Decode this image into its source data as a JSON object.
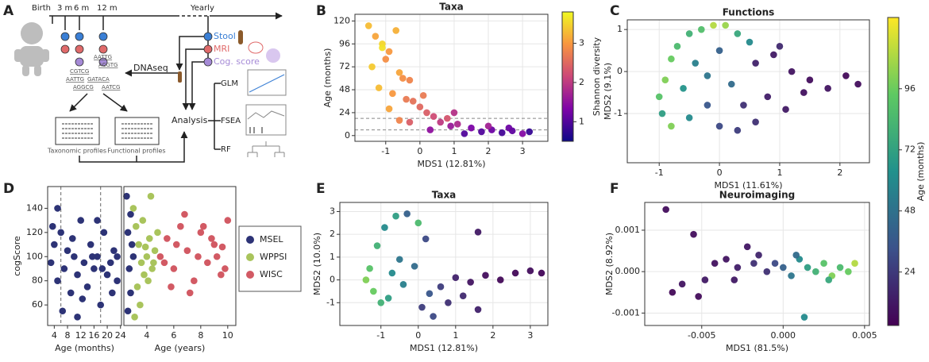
{
  "diagram": {
    "label": "A",
    "timeline": [
      "Birth",
      "3 m",
      "6 m",
      "12 m",
      "Yearly"
    ],
    "samples": [
      "Stool",
      "MRI",
      "Cog. score"
    ],
    "dnaseq": "DNAseq",
    "sequences": [
      "AATTG",
      "ACGTG",
      "CGTCG",
      "AATTG",
      "GATACA",
      "AGGCG",
      "AATCG"
    ],
    "analysis": "Analysis",
    "methods": [
      "GLM",
      "FSEA",
      "RF"
    ],
    "profiles": [
      "Taxonomic profiles",
      "Functional profiles"
    ]
  },
  "chart_data": [
    {
      "type": "scatter",
      "label": "B",
      "title": "Taxa",
      "xlabel": "MDS1 (12.81%)",
      "ylabel": "Age (months)",
      "grid": true,
      "xlim": [
        -1.9,
        3.74
      ],
      "ylim": [
        -6,
        127
      ],
      "xticks": [
        -1,
        0,
        1,
        2,
        3
      ],
      "yticks": [
        0,
        24,
        48,
        72,
        96,
        120
      ],
      "hlines": [
        6,
        18
      ],
      "colormap": "plasma",
      "clim": [
        0.5,
        3.8
      ],
      "colorbar": {
        "label": "Shannon diversity",
        "ticks": [
          1,
          2,
          3
        ]
      },
      "x": [
        -1.5,
        -1.3,
        -1.1,
        -0.9,
        -0.7,
        -1.4,
        -1.0,
        -0.6,
        -0.3,
        -1.2,
        -0.8,
        -0.4,
        0.0,
        -1.1,
        -0.5,
        0.2,
        -0.9,
        -0.2,
        0.4,
        -0.6,
        0.6,
        0.9,
        1.1,
        0.3,
        1.5,
        1.8,
        2.1,
        2.4,
        2.7,
        3.0,
        3.2,
        0.8,
        1.3,
        2.0,
        2.6,
        0.1,
        -0.3,
        1.0
      ],
      "y": [
        115,
        104,
        96,
        88,
        110,
        72,
        80,
        66,
        58,
        50,
        44,
        38,
        30,
        92,
        60,
        24,
        28,
        36,
        20,
        16,
        14,
        10,
        12,
        6,
        8,
        4,
        6,
        3,
        5,
        2,
        4,
        18,
        2,
        10,
        8,
        42,
        14,
        24
      ],
      "c": [
        3.3,
        3.1,
        3.5,
        3.0,
        3.2,
        3.4,
        2.9,
        3.1,
        2.8,
        3.3,
        3.0,
        2.7,
        2.5,
        3.6,
        2.9,
        2.4,
        3.1,
        2.6,
        2.2,
        2.8,
        2.0,
        1.6,
        1.8,
        1.5,
        1.3,
        1.0,
        1.2,
        0.9,
        1.1,
        1.4,
        0.8,
        2.3,
        1.0,
        1.7,
        1.2,
        2.7,
        2.4,
        1.9
      ]
    },
    {
      "type": "scatter",
      "label": "C",
      "title": "Functions",
      "xlabel": "MDS1 (11.61%)",
      "ylabel": "MDS2 (9.1%)",
      "grid": true,
      "xlim": [
        -1.53,
        2.49
      ],
      "ylim": [
        -2.17,
        1.23
      ],
      "xticks": [
        -1,
        0,
        1,
        2
      ],
      "yticks": [
        -1,
        0,
        1
      ],
      "colormap": "viridis",
      "clim": [
        3,
        124
      ],
      "colorbar": {
        "label": "Age (months)",
        "ticks": [
          24,
          48,
          72,
          96
        ]
      },
      "x": [
        -1.0,
        -0.9,
        -0.8,
        -0.7,
        -0.5,
        -0.3,
        -0.1,
        0.1,
        0.3,
        0.5,
        -0.95,
        -0.6,
        -0.4,
        -0.2,
        0.0,
        0.2,
        -0.8,
        -0.5,
        0.0,
        0.4,
        0.6,
        0.9,
        1.2,
        1.5,
        1.8,
        2.1,
        2.3,
        0.8,
        1.1,
        1.4,
        1.0,
        0.3,
        -0.2,
        0.6
      ],
      "y": [
        -0.6,
        -0.2,
        0.3,
        0.6,
        0.9,
        1.0,
        1.1,
        1.1,
        0.9,
        0.7,
        -1.0,
        -0.4,
        0.2,
        -0.1,
        0.5,
        -0.3,
        -1.3,
        -1.1,
        -1.3,
        -0.8,
        0.2,
        0.4,
        0.0,
        -0.2,
        -0.4,
        -0.1,
        -0.3,
        -0.6,
        -0.9,
        -0.5,
        0.6,
        -1.4,
        -0.8,
        -1.2
      ],
      "c": [
        90,
        100,
        95,
        85,
        80,
        88,
        110,
        105,
        75,
        60,
        70,
        65,
        55,
        50,
        40,
        45,
        100,
        60,
        30,
        20,
        15,
        12,
        10,
        8,
        10,
        6,
        8,
        14,
        12,
        9,
        18,
        25,
        35,
        20
      ]
    },
    {
      "type": "scatter",
      "label": "D",
      "ylabel": "cogScore",
      "xlabel": "Age (months)",
      "x2label": "Age (years)",
      "xlim": [
        2,
        24.3
      ],
      "xticks": [
        4,
        8,
        12,
        16,
        20,
        24
      ],
      "x2lim": [
        2.3,
        10.6
      ],
      "x2ticks": [
        4,
        6,
        8,
        10
      ],
      "ylim": [
        43,
        158
      ],
      "yticks": [
        60,
        80,
        100,
        120,
        140
      ],
      "vlines": [
        6,
        18
      ],
      "legend": "right",
      "series": [
        {
          "name": "MSEL",
          "color": "#2d3376",
          "x": [
            3,
            4,
            5,
            6,
            7,
            8,
            9,
            10,
            11,
            12,
            13,
            14,
            15,
            16,
            17,
            18,
            19,
            20,
            21,
            22,
            23,
            3.5,
            6.5,
            9.5,
            12.5,
            15.5,
            18.5,
            21.5,
            5,
            11,
            17,
            23
          ],
          "y": [
            95,
            110,
            80,
            120,
            90,
            105,
            70,
            100,
            85,
            130,
            95,
            75,
            110,
            90,
            100,
            60,
            120,
            85,
            95,
            105,
            80,
            125,
            55,
            115,
            65,
            100,
            90,
            70,
            140,
            50,
            130,
            100
          ]
        },
        {
          "color": "#2d3376",
          "axis": "x2",
          "x": [
            2.5,
            2.6,
            2.7,
            2.8,
            2.9,
            3.0,
            2.6,
            2.8
          ],
          "y": [
            150,
            120,
            90,
            70,
            110,
            100,
            55,
            135
          ]
        },
        {
          "name": "WPPSI",
          "color": "#a9c45c",
          "axis": "x2",
          "x": [
            3.0,
            3.2,
            3.4,
            3.6,
            3.8,
            4.0,
            4.2,
            4.4,
            4.6,
            4.8,
            3.3,
            3.7,
            4.1,
            4.5,
            3.5,
            3.9,
            4.3,
            3.1
          ],
          "y": [
            140,
            125,
            110,
            95,
            85,
            100,
            115,
            90,
            105,
            120,
            75,
            130,
            80,
            95,
            60,
            108,
            150,
            50
          ]
        },
        {
          "name": "WISC",
          "color": "#d25a64",
          "axis": "x2",
          "x": [
            5.0,
            5.5,
            6.0,
            6.5,
            7.0,
            7.5,
            8.0,
            8.5,
            9.0,
            9.5,
            10.0,
            5.8,
            6.8,
            7.8,
            8.8,
            9.8,
            6.2,
            7.2,
            8.2,
            9.2,
            5.3,
            9.6
          ],
          "y": [
            100,
            115,
            90,
            125,
            105,
            80,
            120,
            95,
            110,
            85,
            130,
            75,
            135,
            100,
            115,
            90,
            110,
            70,
            125,
            100,
            95,
            108
          ]
        }
      ]
    },
    {
      "type": "scatter",
      "label": "E",
      "title": "Taxa",
      "xlabel": "MDS1 (12.81%)",
      "ylabel": "MDS2 (10.0%)",
      "grid": true,
      "xlim": [
        -2.1,
        3.47
      ],
      "ylim": [
        -2.0,
        3.4
      ],
      "xticks": [
        -1,
        0,
        1,
        2,
        3
      ],
      "yticks": [
        -1,
        0,
        1,
        2,
        3
      ],
      "colormap": "viridis",
      "clim": [
        3,
        124
      ],
      "x": [
        -1.3,
        -1.1,
        -0.9,
        -0.6,
        -0.3,
        0.0,
        0.2,
        -1.4,
        -1.2,
        -1.0,
        -0.7,
        -0.4,
        -0.1,
        0.3,
        0.6,
        1.0,
        1.4,
        1.8,
        2.2,
        2.6,
        3.0,
        3.3,
        0.8,
        1.2,
        1.6,
        0.4,
        -0.8,
        -0.5,
        0.1,
        1.6
      ],
      "y": [
        0.5,
        1.5,
        2.3,
        2.8,
        2.9,
        2.5,
        1.8,
        0.0,
        -0.5,
        -1.0,
        0.3,
        -0.2,
        0.6,
        -0.6,
        -0.3,
        0.1,
        -0.1,
        0.2,
        0.0,
        0.3,
        0.4,
        0.3,
        -1.0,
        -0.7,
        -1.3,
        -1.6,
        -0.8,
        0.9,
        -1.2,
        2.1
      ],
      "c": [
        90,
        80,
        60,
        70,
        40,
        85,
        30,
        100,
        95,
        80,
        60,
        55,
        45,
        35,
        25,
        15,
        10,
        8,
        6,
        6,
        8,
        5,
        20,
        18,
        15,
        30,
        70,
        50,
        25,
        12
      ]
    },
    {
      "type": "scatter",
      "label": "F",
      "title": "Neuroimaging",
      "xlabel": "MDS1 (81.5%)",
      "ylabel": "MDS2 (8.92%)",
      "grid": true,
      "xlim": [
        -0.0085,
        0.0053
      ],
      "ylim": [
        -0.0013,
        0.00167
      ],
      "xticks": [
        -0.005,
        {
          "value": 0,
          "label": "0.000"
        },
        0.005
      ],
      "yticks": [
        -0.001,
        {
          "value": 0,
          "label": "0.000"
        },
        0.001
      ],
      "colormap": "viridis",
      "clim": [
        3,
        124
      ],
      "x": [
        -0.0072,
        -0.0068,
        -0.0062,
        -0.0055,
        -0.0048,
        -0.0042,
        -0.0035,
        -0.0028,
        -0.0022,
        -0.0015,
        -0.001,
        -0.0005,
        0.0,
        0.0005,
        0.001,
        0.0015,
        0.002,
        0.0025,
        0.003,
        0.0035,
        0.004,
        0.0044,
        -0.0052,
        -0.003,
        0.0013,
        0.0008,
        -0.0018,
        0.0028
      ],
      "y": [
        0.0015,
        -0.0005,
        -0.0003,
        0.0009,
        -0.0002,
        0.0002,
        0.0003,
        0.0001,
        0.0006,
        0.0004,
        0.0,
        0.0002,
        0.0001,
        -0.0001,
        0.0003,
        0.0001,
        0.0,
        0.0002,
        -0.0001,
        0.0001,
        0.0,
        0.0002,
        -0.0006,
        -0.0002,
        -0.0011,
        0.0004,
        0.0002,
        -0.0002
      ],
      "c": [
        8,
        6,
        10,
        8,
        12,
        9,
        10,
        14,
        11,
        16,
        20,
        30,
        40,
        50,
        60,
        70,
        80,
        90,
        100,
        85,
        95,
        110,
        7,
        12,
        60,
        45,
        20,
        75
      ]
    }
  ]
}
